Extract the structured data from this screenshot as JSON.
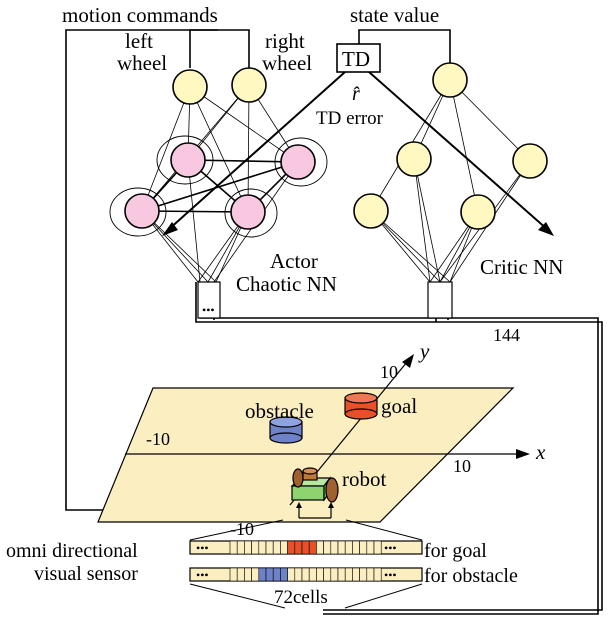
{
  "labels": {
    "motion_commands": "motion commands",
    "left_wheel_1": "left",
    "left_wheel_2": "wheel",
    "right_wheel_1": "right",
    "right_wheel_2": "wheel",
    "state_value": "state value",
    "td_box": "TD",
    "r_hat": "r̂",
    "td_error": "TD error",
    "actor_1": "Actor",
    "actor_2": "Chaotic NN",
    "critic": "Critic NN",
    "count_144": "144",
    "y_axis": "y",
    "x_axis": "x",
    "y_max": "10",
    "x_max": "10",
    "x_min": "-10",
    "y_min": "-10",
    "obstacle": "obstacle",
    "goal": "goal",
    "robot": "robot",
    "sensor_1": "omni directional",
    "sensor_2": "visual sensor",
    "for_goal": "for goal",
    "for_obstacle": "for obstacle",
    "cells": "72cells",
    "dots": "•••"
  },
  "colors": {
    "neuron_output": "#fff8c0",
    "neuron_chaotic": "#f8c8e0",
    "field": "#fbeec0",
    "goal": "#e8502a",
    "obstacle": "#6e82c8",
    "robot_body": "#8fd36f",
    "robot_wheel": "#a06030"
  }
}
